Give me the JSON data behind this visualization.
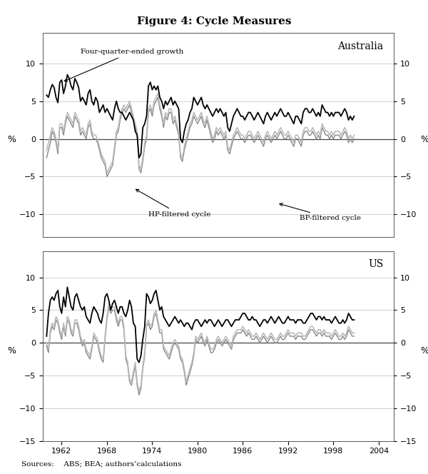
{
  "title": "Figure 4: Cycle Measures",
  "subtitle_aus": "Australia",
  "subtitle_us": "US",
  "sources": "Sources:  ABS; BEA; authors’calculations",
  "label_four_quarter": "Four-quarter-ended growth",
  "label_hp": "HP-filtered cycle",
  "label_bp": "BP-filtered cycle",
  "aus_ylim": [
    -13,
    14
  ],
  "us_ylim": [
    -15,
    14
  ],
  "yticks_aus": [
    -10,
    -5,
    0,
    5,
    10
  ],
  "yticks_us": [
    -15,
    -10,
    -5,
    0,
    5,
    10
  ],
  "xticks": [
    1962,
    1968,
    1974,
    1980,
    1986,
    1992,
    1998,
    2004
  ],
  "color_black": "#000000",
  "color_dark_gray": "#888888",
  "color_light_gray": "#bbbbbb",
  "color_text": "#8B4513",
  "background_color": "#ffffff",
  "aus_4q": [
    5.8,
    5.5,
    6.5,
    7.2,
    6.8,
    5.5,
    4.8,
    7.5,
    7.8,
    6.0,
    7.0,
    8.5,
    8.0,
    7.0,
    6.5,
    8.0,
    7.5,
    6.8,
    5.0,
    5.5,
    5.0,
    4.5,
    6.0,
    6.5,
    5.0,
    4.5,
    5.5,
    5.0,
    3.5,
    4.0,
    4.5,
    3.5,
    4.0,
    3.5,
    3.0,
    2.5,
    4.0,
    5.0,
    4.0,
    3.5,
    3.5,
    3.0,
    2.5,
    3.0,
    3.5,
    3.0,
    2.5,
    1.0,
    0.5,
    -2.5,
    -2.0,
    1.5,
    2.0,
    3.0,
    7.0,
    7.5,
    6.5,
    7.0,
    6.5,
    7.0,
    5.5,
    5.0,
    4.0,
    5.0,
    4.5,
    5.0,
    5.5,
    4.5,
    5.0,
    4.5,
    4.0,
    0.0,
    -0.5,
    1.0,
    2.0,
    2.5,
    3.5,
    4.0,
    5.5,
    5.0,
    4.5,
    5.0,
    5.5,
    4.5,
    4.0,
    4.5,
    4.0,
    3.5,
    3.0,
    3.5,
    4.0,
    3.5,
    4.0,
    3.5,
    3.0,
    3.5,
    1.5,
    1.0,
    2.0,
    3.0,
    3.5,
    4.0,
    3.5,
    3.0,
    3.0,
    2.5,
    3.0,
    3.5,
    3.5,
    3.0,
    2.5,
    3.0,
    3.5,
    3.0,
    2.5,
    2.0,
    3.0,
    3.5,
    3.0,
    2.5,
    3.0,
    3.5,
    3.0,
    3.5,
    4.0,
    3.5,
    3.0,
    3.0,
    3.5,
    3.0,
    2.5,
    2.0,
    3.0,
    3.0,
    2.5,
    2.0,
    3.5,
    4.0,
    4.0,
    3.5,
    3.5,
    4.0,
    3.5,
    3.0,
    3.5,
    3.0,
    4.5,
    4.0,
    3.5,
    3.5,
    3.0,
    3.5,
    3.0,
    3.5,
    3.5,
    3.5,
    3.0,
    3.5,
    4.0,
    3.5,
    2.5,
    3.0,
    2.5,
    3.0
  ],
  "aus_hp": [
    -2.5,
    -1.5,
    -0.5,
    1.0,
    0.5,
    -0.5,
    -2.0,
    1.5,
    1.5,
    0.5,
    2.0,
    3.0,
    2.5,
    2.0,
    1.5,
    3.0,
    2.5,
    2.0,
    0.5,
    1.0,
    0.5,
    0.0,
    1.5,
    2.0,
    0.5,
    0.0,
    0.0,
    -0.5,
    -1.5,
    -2.5,
    -3.0,
    -3.5,
    -5.0,
    -4.5,
    -4.0,
    -3.5,
    -1.5,
    0.5,
    1.0,
    2.5,
    3.5,
    4.0,
    3.5,
    4.0,
    4.5,
    3.5,
    2.5,
    1.5,
    0.5,
    -4.0,
    -4.5,
    -3.0,
    -1.0,
    0.0,
    3.5,
    4.0,
    3.0,
    4.5,
    5.0,
    5.5,
    4.0,
    3.0,
    1.5,
    3.0,
    2.5,
    3.5,
    3.5,
    2.0,
    2.5,
    1.5,
    0.5,
    -2.5,
    -3.0,
    -1.5,
    -0.5,
    0.5,
    1.5,
    2.0,
    3.0,
    2.5,
    2.0,
    2.5,
    3.0,
    2.0,
    1.5,
    2.5,
    1.5,
    0.5,
    -0.5,
    0.0,
    1.0,
    0.5,
    1.0,
    0.5,
    0.0,
    0.5,
    -1.5,
    -2.0,
    -1.0,
    0.0,
    0.5,
    1.0,
    0.5,
    0.0,
    0.0,
    -0.5,
    0.0,
    0.5,
    0.5,
    0.0,
    -0.5,
    0.0,
    0.5,
    0.0,
    -0.5,
    -1.0,
    0.0,
    0.5,
    0.0,
    -0.5,
    0.0,
    0.5,
    0.0,
    0.5,
    1.0,
    0.5,
    0.0,
    0.0,
    0.5,
    0.0,
    -0.5,
    -1.0,
    0.0,
    0.0,
    -0.5,
    -1.0,
    0.5,
    1.0,
    1.0,
    0.5,
    0.5,
    1.0,
    0.5,
    0.0,
    0.5,
    0.0,
    1.5,
    1.0,
    0.5,
    0.5,
    0.0,
    0.5,
    0.0,
    0.5,
    0.5,
    0.5,
    0.0,
    0.5,
    1.0,
    0.5,
    -0.5,
    0.0,
    -0.5,
    0.0
  ],
  "aus_bp": [
    -1.5,
    -0.5,
    0.5,
    1.5,
    1.0,
    0.0,
    -1.5,
    2.0,
    2.0,
    1.0,
    2.5,
    3.5,
    3.0,
    2.5,
    2.0,
    3.5,
    3.0,
    2.5,
    1.0,
    1.5,
    1.0,
    0.5,
    2.0,
    2.5,
    1.0,
    0.5,
    0.5,
    0.0,
    -1.0,
    -2.0,
    -2.5,
    -3.0,
    -4.5,
    -4.0,
    -3.5,
    -3.0,
    -1.0,
    1.0,
    1.5,
    3.0,
    4.0,
    4.5,
    4.0,
    4.5,
    5.0,
    4.0,
    3.0,
    2.0,
    1.0,
    -3.5,
    -4.0,
    -2.5,
    -0.5,
    0.5,
    4.0,
    4.5,
    3.5,
    5.0,
    5.5,
    6.0,
    4.5,
    3.5,
    2.0,
    3.5,
    3.0,
    4.0,
    4.0,
    2.5,
    3.0,
    2.0,
    1.0,
    -2.0,
    -2.5,
    -1.0,
    0.0,
    1.0,
    2.0,
    2.5,
    3.5,
    3.0,
    2.5,
    3.0,
    3.5,
    2.5,
    2.0,
    3.0,
    2.0,
    1.0,
    0.0,
    0.5,
    1.5,
    1.0,
    1.5,
    1.0,
    0.5,
    1.0,
    -1.0,
    -1.5,
    -0.5,
    0.5,
    1.0,
    1.5,
    1.0,
    0.5,
    0.5,
    0.0,
    0.5,
    1.0,
    1.0,
    0.5,
    0.0,
    0.5,
    1.0,
    0.5,
    0.0,
    -0.5,
    0.5,
    1.0,
    0.5,
    0.0,
    0.5,
    1.0,
    0.5,
    1.0,
    1.5,
    1.0,
    0.5,
    0.5,
    1.0,
    0.5,
    0.0,
    -0.5,
    0.5,
    0.5,
    0.0,
    -0.5,
    1.0,
    1.5,
    1.5,
    1.0,
    1.0,
    1.5,
    1.0,
    0.5,
    1.0,
    0.5,
    2.0,
    1.5,
    1.0,
    1.0,
    0.5,
    1.0,
    0.5,
    1.0,
    1.0,
    1.0,
    0.5,
    1.0,
    1.5,
    1.0,
    0.0,
    0.5,
    0.0,
    0.5
  ],
  "us_4q": [
    1.0,
    4.5,
    6.5,
    7.0,
    6.5,
    7.5,
    8.0,
    5.5,
    4.5,
    7.0,
    5.5,
    8.5,
    7.0,
    5.5,
    5.0,
    7.0,
    7.5,
    6.5,
    5.5,
    5.0,
    5.5,
    4.0,
    3.5,
    3.0,
    4.5,
    5.5,
    5.0,
    4.5,
    3.5,
    3.0,
    4.5,
    7.0,
    7.5,
    6.5,
    5.0,
    6.0,
    6.5,
    5.5,
    4.5,
    5.5,
    5.5,
    4.5,
    4.0,
    5.0,
    6.5,
    5.5,
    3.0,
    2.5,
    -2.5,
    -3.0,
    -2.0,
    0.5,
    2.5,
    7.5,
    7.0,
    6.0,
    6.5,
    7.5,
    8.0,
    6.5,
    5.0,
    5.5,
    4.0,
    3.5,
    3.0,
    2.5,
    3.0,
    3.5,
    4.0,
    3.5,
    3.0,
    3.5,
    3.0,
    2.5,
    3.0,
    3.0,
    2.5,
    2.0,
    3.0,
    3.5,
    3.5,
    3.0,
    2.5,
    3.0,
    3.5,
    3.0,
    3.5,
    3.5,
    3.0,
    2.5,
    3.0,
    3.5,
    3.0,
    2.5,
    3.0,
    3.5,
    3.5,
    3.0,
    2.5,
    3.0,
    3.5,
    3.5,
    3.5,
    4.0,
    4.5,
    4.5,
    4.0,
    3.5,
    3.5,
    4.0,
    3.5,
    3.5,
    3.0,
    2.5,
    3.0,
    3.5,
    3.5,
    3.0,
    3.5,
    4.0,
    3.5,
    3.0,
    3.5,
    4.0,
    3.5,
    3.0,
    3.0,
    3.5,
    4.0,
    3.5,
    3.5,
    3.5,
    3.0,
    3.5,
    3.5,
    3.5,
    3.0,
    3.0,
    3.5,
    4.0,
    4.5,
    4.5,
    4.0,
    3.5,
    4.0,
    4.0,
    3.5,
    4.0,
    3.5,
    3.5,
    3.5,
    3.0,
    3.5,
    4.0,
    3.5,
    3.0,
    3.0,
    3.5,
    3.0,
    3.5,
    4.5,
    4.0,
    3.5,
    3.5
  ],
  "us_hp": [
    -0.5,
    -1.5,
    1.5,
    2.5,
    2.0,
    3.5,
    3.0,
    1.5,
    0.5,
    2.5,
    1.0,
    3.5,
    3.0,
    1.5,
    1.0,
    3.0,
    3.0,
    2.0,
    0.5,
    -0.5,
    0.0,
    -1.5,
    -2.0,
    -2.5,
    -1.0,
    1.0,
    0.5,
    0.0,
    -1.5,
    -2.5,
    -3.0,
    0.5,
    3.5,
    5.5,
    4.5,
    5.0,
    5.0,
    3.5,
    2.5,
    3.5,
    3.5,
    2.0,
    -2.5,
    -3.5,
    -6.0,
    -6.5,
    -5.0,
    -3.5,
    -6.5,
    -8.0,
    -7.0,
    -4.0,
    -2.0,
    2.5,
    3.0,
    2.0,
    2.5,
    4.0,
    4.5,
    3.0,
    1.5,
    1.5,
    -1.0,
    -1.5,
    -2.0,
    -2.5,
    -1.5,
    -0.5,
    0.0,
    -0.5,
    -1.0,
    -2.5,
    -3.0,
    -4.5,
    -6.5,
    -5.5,
    -4.5,
    -3.5,
    -2.0,
    0.5,
    0.0,
    0.5,
    1.0,
    0.0,
    -0.5,
    0.5,
    -0.5,
    -1.5,
    -1.5,
    -1.0,
    0.0,
    0.5,
    0.0,
    -0.5,
    0.0,
    0.5,
    0.0,
    -0.5,
    -1.0,
    0.5,
    1.0,
    1.5,
    1.5,
    1.5,
    2.0,
    1.5,
    1.0,
    1.5,
    1.0,
    0.5,
    0.5,
    1.0,
    0.5,
    0.0,
    0.5,
    1.0,
    0.5,
    0.0,
    0.5,
    1.0,
    0.5,
    0.0,
    0.0,
    0.5,
    1.0,
    0.5,
    0.5,
    1.0,
    1.5,
    1.0,
    1.0,
    1.0,
    0.5,
    1.0,
    1.0,
    1.0,
    0.5,
    0.5,
    1.0,
    1.5,
    2.0,
    2.0,
    1.5,
    1.0,
    1.5,
    1.5,
    1.0,
    1.5,
    1.0,
    1.0,
    1.0,
    0.5,
    1.0,
    1.5,
    1.0,
    0.5,
    0.5,
    1.0,
    0.5,
    1.0,
    2.0,
    1.5,
    1.0,
    1.0
  ],
  "us_bp": [
    0.0,
    -1.0,
    2.0,
    3.0,
    2.5,
    4.0,
    3.5,
    2.0,
    1.0,
    3.0,
    1.5,
    4.0,
    3.5,
    2.0,
    1.5,
    3.5,
    3.5,
    2.5,
    1.0,
    0.0,
    0.5,
    -1.0,
    -1.5,
    -2.0,
    -0.5,
    1.5,
    1.0,
    0.5,
    -1.0,
    -2.0,
    -2.5,
    1.0,
    4.0,
    6.0,
    5.0,
    5.5,
    5.5,
    4.0,
    3.0,
    4.0,
    4.0,
    2.5,
    -2.0,
    -3.0,
    -5.5,
    -6.0,
    -4.5,
    -3.0,
    -6.0,
    -7.5,
    -6.5,
    -3.5,
    -1.5,
    3.0,
    3.5,
    2.5,
    3.0,
    4.5,
    5.0,
    3.5,
    2.0,
    2.0,
    -0.5,
    -1.0,
    -1.5,
    -2.0,
    -1.0,
    0.0,
    0.5,
    0.0,
    -0.5,
    -2.0,
    -2.5,
    -4.0,
    -6.0,
    -5.0,
    -4.0,
    -3.0,
    -1.5,
    1.0,
    0.5,
    1.0,
    1.5,
    0.5,
    0.0,
    1.0,
    0.0,
    -1.0,
    -1.0,
    -0.5,
    0.5,
    1.0,
    0.5,
    0.0,
    0.5,
    1.0,
    0.5,
    0.0,
    -0.5,
    1.0,
    1.5,
    2.0,
    2.0,
    2.0,
    2.5,
    2.0,
    1.5,
    2.0,
    1.5,
    1.0,
    1.0,
    1.5,
    1.0,
    0.5,
    1.0,
    1.5,
    1.0,
    0.5,
    1.0,
    1.5,
    1.0,
    0.5,
    0.5,
    1.0,
    1.5,
    1.0,
    1.0,
    1.5,
    2.0,
    1.5,
    1.5,
    1.5,
    1.0,
    1.5,
    1.5,
    1.5,
    1.0,
    1.0,
    1.5,
    2.0,
    2.5,
    2.5,
    2.0,
    1.5,
    2.0,
    2.0,
    1.5,
    2.0,
    1.5,
    1.5,
    1.5,
    1.0,
    1.5,
    2.0,
    1.5,
    1.0,
    1.0,
    1.5,
    1.0,
    1.5,
    2.5,
    2.0,
    1.5,
    1.5
  ]
}
